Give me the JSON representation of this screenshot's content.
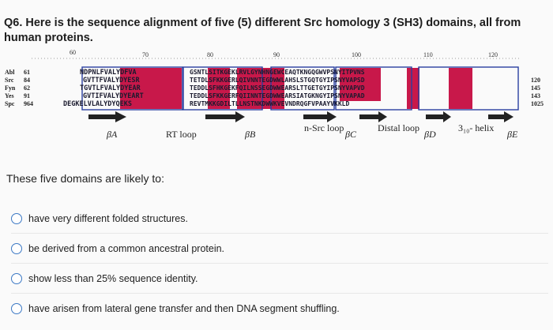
{
  "question": {
    "text": "Q6. Here is the sequence alignment of five (5) different Src homology 3 (SH3) domains, all from human proteins."
  },
  "figure": {
    "ruler": [
      "60",
      "70",
      "80",
      "90",
      "100",
      "110",
      "120"
    ],
    "proteins": [
      {
        "name": "Abl",
        "start": "61",
        "end": ""
      },
      {
        "name": "Src",
        "start": "84",
        "end": "120"
      },
      {
        "name": "Fyn",
        "start": "62",
        "end": "145"
      },
      {
        "name": "Yes",
        "start": "91",
        "end": "143"
      },
      {
        "name": "Spc",
        "start": "964",
        "end": "1025"
      }
    ],
    "sequences": [
      "NDPNLFVALYDFVA",
      "GVTTFVALYDYESR",
      "TGVTLFVALYDYEAR",
      "GVTIFVALYDYEART",
      "DEGKELVLALYDYQEKS"
    ],
    "sequences_right": [
      "GSNTLSITKGEKLRVLGYNHNGEWCEAQTKNGQGWVPSNYITPVNS",
      "TETDLSFKKGERLQIVNNTEGDWWLAHSLSTGQTGYIPSNYVAPSD",
      "TEDDLSFHKGEKFQILNSSEGDWWEARSLTTGETGYIPSNYVAPVD",
      "TEDDLSFKKGERFQIINNTEGDWWEARSIATGKNGYIPSNYVAPAD",
      "REVTMKKGDILTLLNSTNKDWWKVEVNDRQGFVPAAYVKKLD"
    ],
    "structure_labels": [
      "βA",
      "RT loop",
      "βB",
      "n-Src loop",
      "βC",
      "Distal loop",
      "βD",
      "3₁₀- helix",
      "βE"
    ],
    "colors": {
      "highlight": "#c8184a",
      "box": "#2a3fa0",
      "text_dark": "#1a1a2e"
    }
  },
  "prompt": "These five domains are likely to:",
  "options": [
    {
      "label": "have very different folded structures."
    },
    {
      "label": "be derived from a common ancestral protein."
    },
    {
      "label": "show less than 25% sequence identity."
    },
    {
      "label": "have arisen from lateral gene transfer and then DNA segment shuffling."
    }
  ]
}
